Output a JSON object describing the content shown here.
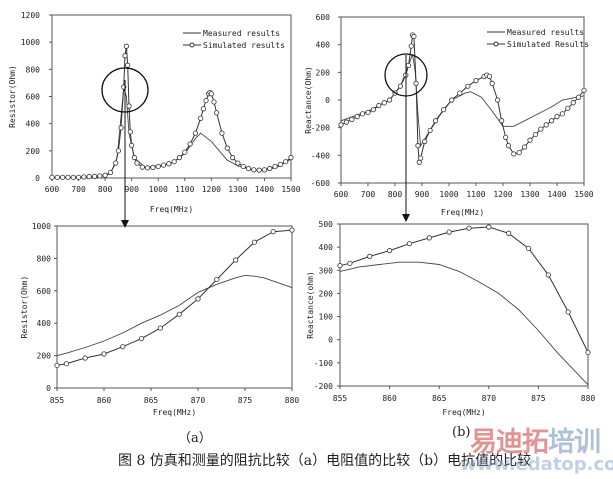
{
  "caption": "图 8 仿真和测量的阻抗比较（a）电阻值的比较（b）电抗值的比较",
  "panel_labels": {
    "a": "（a）",
    "b": "(b)"
  },
  "watermark": {
    "brand": "易迪拓培训",
    "url": "www.edatop.com"
  },
  "chart_data": [
    {
      "type": "line",
      "xlabel": "Freq(MHz)",
      "ylabel": "Resistor(Ohm)",
      "xlim": [
        600,
        1500
      ],
      "ylim": [
        0,
        1200
      ],
      "xticks": [
        600,
        700,
        800,
        900,
        1000,
        1100,
        1200,
        1300,
        1400,
        1500
      ],
      "yticks": [
        0,
        200,
        400,
        600,
        800,
        1000,
        1200
      ],
      "grid": false,
      "legend": "top-right",
      "series": [
        {
          "name": "Measured results",
          "marker": "none",
          "x": [
            600,
            700,
            780,
            820,
            845,
            860,
            870,
            880,
            890,
            910,
            950,
            1000,
            1050,
            1100,
            1140,
            1160,
            1180,
            1200,
            1230,
            1260,
            1300,
            1350,
            1400,
            1450,
            1500
          ],
          "y": [
            0,
            2,
            8,
            30,
            150,
            450,
            660,
            600,
            330,
            150,
            80,
            90,
            110,
            180,
            290,
            330,
            300,
            270,
            200,
            130,
            90,
            60,
            55,
            80,
            140
          ]
        },
        {
          "name": "Simulated results",
          "marker": "circle",
          "x": [
            600,
            620,
            640,
            660,
            680,
            700,
            720,
            740,
            760,
            780,
            800,
            820,
            840,
            850,
            860,
            870,
            875,
            880,
            885,
            890,
            895,
            900,
            910,
            920,
            940,
            960,
            980,
            1000,
            1020,
            1040,
            1060,
            1080,
            1100,
            1120,
            1140,
            1160,
            1170,
            1180,
            1190,
            1195,
            1200,
            1210,
            1220,
            1240,
            1260,
            1280,
            1300,
            1320,
            1340,
            1360,
            1380,
            1400,
            1420,
            1440,
            1460,
            1480,
            1500
          ],
          "y": [
            5,
            5,
            5,
            5,
            5,
            5,
            8,
            10,
            12,
            15,
            20,
            40,
            110,
            200,
            370,
            670,
            900,
            970,
            830,
            530,
            340,
            240,
            150,
            110,
            80,
            75,
            78,
            85,
            95,
            105,
            120,
            150,
            190,
            250,
            330,
            440,
            510,
            570,
            620,
            630,
            620,
            560,
            480,
            330,
            220,
            150,
            110,
            85,
            70,
            60,
            58,
            60,
            70,
            85,
            100,
            120,
            150
          ]
        }
      ]
    },
    {
      "type": "line",
      "xlabel": "Freq(MHz)",
      "ylabel": "Reactance(Ohm)",
      "xlim": [
        600,
        1500
      ],
      "ylim": [
        -600,
        600
      ],
      "xticks": [
        600,
        700,
        800,
        900,
        1000,
        1100,
        1200,
        1300,
        1400,
        1500
      ],
      "yticks": [
        -600,
        -400,
        -200,
        0,
        200,
        400,
        600
      ],
      "grid": false,
      "legend": "top-right",
      "series": [
        {
          "name": "Measured results",
          "marker": "none",
          "x": [
            600,
            700,
            780,
            820,
            850,
            865,
            875,
            885,
            895,
            920,
            970,
            1010,
            1060,
            1080,
            1120,
            1160,
            1200,
            1240,
            1300,
            1380,
            1420,
            1500
          ],
          "y": [
            -150,
            -80,
            0,
            100,
            250,
            330,
            200,
            -100,
            -330,
            -250,
            -100,
            0,
            50,
            60,
            20,
            -80,
            -190,
            -190,
            -130,
            -50,
            0,
            30
          ]
        },
        {
          "name": "Simulated Results",
          "marker": "circle",
          "x": [
            600,
            620,
            640,
            660,
            680,
            700,
            720,
            740,
            760,
            780,
            800,
            820,
            840,
            850,
            860,
            865,
            870,
            878,
            885,
            890,
            895,
            910,
            930,
            950,
            980,
            1010,
            1040,
            1070,
            1100,
            1130,
            1140,
            1150,
            1160,
            1180,
            1195,
            1210,
            1220,
            1240,
            1260,
            1280,
            1300,
            1320,
            1340,
            1360,
            1380,
            1400,
            1420,
            1440,
            1460,
            1480,
            1500
          ],
          "y": [
            -180,
            -160,
            -140,
            -120,
            -100,
            -90,
            -70,
            -40,
            -20,
            0,
            50,
            100,
            180,
            250,
            390,
            470,
            460,
            120,
            -330,
            -450,
            -420,
            -300,
            -220,
            -150,
            -70,
            0,
            50,
            100,
            140,
            170,
            180,
            170,
            120,
            0,
            -150,
            -270,
            -330,
            -390,
            -380,
            -340,
            -290,
            -250,
            -210,
            -180,
            -150,
            -120,
            -100,
            -60,
            -20,
            20,
            70
          ]
        }
      ]
    },
    {
      "type": "line",
      "xlabel": "Freq(MHz)",
      "ylabel": "Resistor(Ohm)",
      "xlim": [
        855,
        880
      ],
      "ylim": [
        0,
        1000
      ],
      "xticks": [
        855,
        860,
        865,
        870,
        875,
        880
      ],
      "yticks": [
        0,
        200,
        400,
        600,
        800,
        1000
      ],
      "grid": false,
      "series": [
        {
          "marker": "none",
          "x": [
            855,
            856,
            858,
            860,
            862,
            864,
            866,
            868,
            870,
            872,
            874,
            875,
            876,
            877,
            878,
            879,
            880
          ],
          "y": [
            200,
            215,
            250,
            290,
            340,
            400,
            450,
            510,
            590,
            640,
            680,
            695,
            690,
            680,
            660,
            640,
            620
          ]
        },
        {
          "marker": "circle",
          "x": [
            855,
            856,
            858,
            860,
            862,
            864,
            866,
            868,
            870,
            872,
            874,
            876,
            878,
            880
          ],
          "y": [
            140,
            150,
            185,
            210,
            255,
            305,
            370,
            455,
            550,
            670,
            790,
            900,
            965,
            975
          ]
        }
      ]
    },
    {
      "type": "line",
      "xlabel": "Freq(MHz)",
      "ylabel": "Reactance(ohm)",
      "xlim": [
        855,
        880
      ],
      "ylim": [
        -200,
        500
      ],
      "xticks": [
        855,
        860,
        865,
        870,
        875,
        880
      ],
      "yticks": [
        -200,
        -100,
        0,
        100,
        200,
        300,
        400,
        500
      ],
      "grid": false,
      "series": [
        {
          "marker": "none",
          "x": [
            855,
            857,
            859,
            861,
            863,
            865,
            867,
            869,
            871,
            873,
            875,
            877,
            879,
            880
          ],
          "y": [
            295,
            315,
            325,
            335,
            335,
            325,
            295,
            250,
            200,
            130,
            40,
            -60,
            -150,
            -195
          ]
        },
        {
          "marker": "circle",
          "x": [
            855,
            856,
            858,
            860,
            862,
            864,
            866,
            868,
            870,
            872,
            874,
            876,
            878,
            880
          ],
          "y": [
            320,
            330,
            360,
            385,
            415,
            440,
            465,
            482,
            487,
            460,
            395,
            280,
            120,
            -55
          ]
        }
      ]
    }
  ]
}
